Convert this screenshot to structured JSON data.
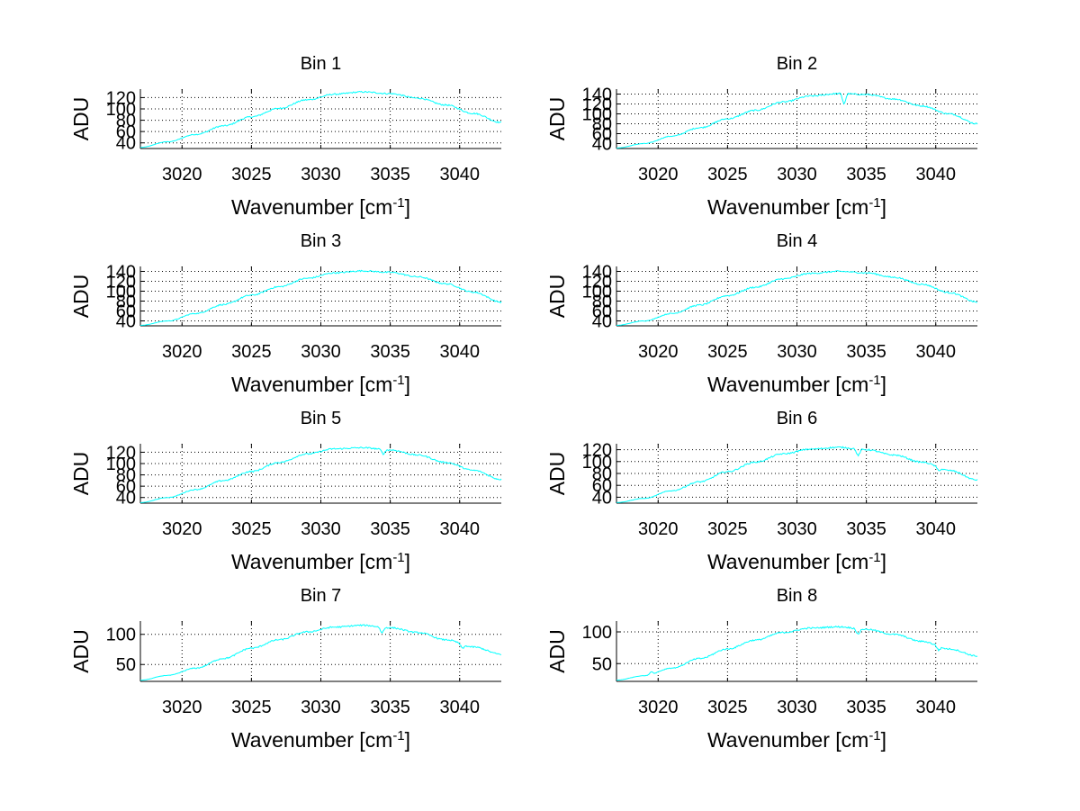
{
  "chart_data": [
    {
      "type": "line",
      "title": "Bin 1",
      "xlabel": "Wavenumber [cm",
      "xlabel_sup": "-1",
      "xlabel_end": "]",
      "ylabel": "ADU",
      "xlim": [
        3017,
        3043
      ],
      "xticks": [
        3020,
        3025,
        3030,
        3035,
        3040
      ],
      "ylim": [
        30,
        135
      ],
      "yticks": [
        40,
        60,
        80,
        100,
        120
      ],
      "ytick_labels": [
        "40",
        "60",
        "80",
        "100",
        "120"
      ],
      "grid": true,
      "line_color": "#00ffff",
      "series": [
        {
          "x": [
            3017,
            3019,
            3021,
            3023,
            3025,
            3027,
            3029,
            3031,
            3033,
            3035,
            3037,
            3039,
            3041,
            3043
          ],
          "values": [
            32,
            42,
            55,
            70,
            86,
            101,
            116,
            126,
            130,
            127,
            119,
            107,
            92,
            76
          ]
        }
      ],
      "dips": []
    },
    {
      "type": "line",
      "title": "Bin 2",
      "xlabel": "Wavenumber [cm",
      "xlabel_sup": "-1",
      "xlabel_end": "]",
      "ylabel": "ADU",
      "xlim": [
        3017,
        3043
      ],
      "xticks": [
        3020,
        3025,
        3030,
        3035,
        3040
      ],
      "ylim": [
        30,
        150
      ],
      "yticks": [
        40,
        60,
        80,
        100,
        120,
        140
      ],
      "ytick_labels": [
        "40",
        "60",
        "80",
        "100",
        "120",
        "140"
      ],
      "grid": true,
      "line_color": "#00ffff",
      "series": [
        {
          "x": [
            3017,
            3019,
            3021,
            3023,
            3025,
            3027,
            3029,
            3031,
            3033,
            3035,
            3037,
            3039,
            3041,
            3043
          ],
          "values": [
            31,
            40,
            55,
            72,
            90,
            107,
            124,
            136,
            141,
            139,
            130,
            116,
            100,
            80
          ]
        }
      ],
      "dips": [
        {
          "x": 3033.4,
          "depth": 22
        }
      ]
    },
    {
      "type": "line",
      "title": "Bin 3",
      "xlabel": "Wavenumber [cm",
      "xlabel_sup": "-1",
      "xlabel_end": "]",
      "ylabel": "ADU",
      "xlim": [
        3017,
        3043
      ],
      "xticks": [
        3020,
        3025,
        3030,
        3035,
        3040
      ],
      "ylim": [
        30,
        150
      ],
      "yticks": [
        40,
        60,
        80,
        100,
        120,
        140
      ],
      "ytick_labels": [
        "40",
        "60",
        "80",
        "100",
        "120",
        "140"
      ],
      "grid": true,
      "line_color": "#00ffff",
      "series": [
        {
          "x": [
            3017,
            3019,
            3021,
            3023,
            3025,
            3027,
            3029,
            3031,
            3033,
            3035,
            3037,
            3039,
            3041,
            3043
          ],
          "values": [
            31,
            40,
            55,
            73,
            92,
            109,
            126,
            137,
            141,
            138,
            129,
            115,
            98,
            78
          ]
        }
      ],
      "dips": []
    },
    {
      "type": "line",
      "title": "Bin 4",
      "xlabel": "Wavenumber [cm",
      "xlabel_sup": "-1",
      "xlabel_end": "]",
      "ylabel": "ADU",
      "xlim": [
        3017,
        3043
      ],
      "xticks": [
        3020,
        3025,
        3030,
        3035,
        3040
      ],
      "ylim": [
        30,
        150
      ],
      "yticks": [
        40,
        60,
        80,
        100,
        120,
        140
      ],
      "ytick_labels": [
        "40",
        "60",
        "80",
        "100",
        "120",
        "140"
      ],
      "grid": true,
      "line_color": "#00ffff",
      "series": [
        {
          "x": [
            3017,
            3019,
            3021,
            3023,
            3025,
            3027,
            3029,
            3031,
            3033,
            3035,
            3037,
            3039,
            3041,
            3043
          ],
          "values": [
            31,
            40,
            55,
            72,
            91,
            108,
            125,
            136,
            140,
            137,
            128,
            114,
            97,
            78
          ]
        }
      ],
      "dips": []
    },
    {
      "type": "line",
      "title": "Bin 5",
      "xlabel": "Wavenumber [cm",
      "xlabel_sup": "-1",
      "xlabel_end": "]",
      "ylabel": "ADU",
      "xlim": [
        3017,
        3043
      ],
      "xticks": [
        3020,
        3025,
        3030,
        3035,
        3040
      ],
      "ylim": [
        30,
        135
      ],
      "yticks": [
        40,
        60,
        80,
        100,
        120
      ],
      "ytick_labels": [
        "40",
        "60",
        "80",
        "100",
        "120"
      ],
      "grid": true,
      "line_color": "#00ffff",
      "series": [
        {
          "x": [
            3017,
            3019,
            3021,
            3023,
            3025,
            3027,
            3029,
            3031,
            3033,
            3035,
            3037,
            3039,
            3041,
            3043
          ],
          "values": [
            31,
            40,
            54,
            70,
            86,
            102,
            117,
            126,
            128,
            124,
            115,
            102,
            88,
            72
          ]
        }
      ],
      "dips": [
        {
          "x": 3034.5,
          "depth": 8
        }
      ]
    },
    {
      "type": "line",
      "title": "Bin 6",
      "xlabel": "Wavenumber [cm",
      "xlabel_sup": "-1",
      "xlabel_end": "]",
      "ylabel": "ADU",
      "xlim": [
        3017,
        3043
      ],
      "xticks": [
        3020,
        3025,
        3030,
        3035,
        3040
      ],
      "ylim": [
        30,
        130
      ],
      "yticks": [
        40,
        60,
        80,
        100,
        120
      ],
      "ytick_labels": [
        "40",
        "60",
        "80",
        "100",
        "120"
      ],
      "grid": true,
      "line_color": "#00ffff",
      "series": [
        {
          "x": [
            3017,
            3019,
            3021,
            3023,
            3025,
            3027,
            3029,
            3031,
            3033,
            3035,
            3037,
            3039,
            3041,
            3043
          ],
          "values": [
            31,
            38,
            51,
            66,
            83,
            99,
            113,
            121,
            124,
            120,
            111,
            99,
            85,
            69
          ]
        }
      ],
      "dips": [
        {
          "x": 3034.4,
          "depth": 12
        },
        {
          "x": 3040.2,
          "depth": 5
        }
      ]
    },
    {
      "type": "line",
      "title": "Bin 7",
      "xlabel": "Wavenumber [cm",
      "xlabel_sup": "-1",
      "xlabel_end": "]",
      "ylabel": "ADU",
      "xlim": [
        3017,
        3043
      ],
      "xticks": [
        3020,
        3025,
        3030,
        3035,
        3040
      ],
      "ylim": [
        22,
        122
      ],
      "yticks": [
        50,
        100
      ],
      "ytick_labels": [
        "50",
        "100"
      ],
      "grid": true,
      "line_color": "#00ffff",
      "series": [
        {
          "x": [
            3017,
            3019,
            3021,
            3023,
            3025,
            3027,
            3029,
            3031,
            3033,
            3035,
            3037,
            3039,
            3041,
            3043
          ],
          "values": [
            24,
            32,
            44,
            60,
            77,
            91,
            104,
            112,
            115,
            111,
            103,
            91,
            79,
            67
          ]
        }
      ],
      "dips": [
        {
          "x": 3034.4,
          "depth": 10
        },
        {
          "x": 3040.2,
          "depth": 7
        }
      ]
    },
    {
      "type": "line",
      "title": "Bin 8",
      "xlabel": "Wavenumber [cm",
      "xlabel_sup": "-1",
      "xlabel_end": "]",
      "ylabel": "ADU",
      "xlim": [
        3017,
        3043
      ],
      "xticks": [
        3020,
        3025,
        3030,
        3035,
        3040
      ],
      "ylim": [
        22,
        117
      ],
      "yticks": [
        50,
        100
      ],
      "ytick_labels": [
        "50",
        "100"
      ],
      "grid": true,
      "line_color": "#00ffff",
      "series": [
        {
          "x": [
            3017,
            3019,
            3021,
            3023,
            3025,
            3027,
            3029,
            3031,
            3033,
            3035,
            3037,
            3039,
            3041,
            3043
          ],
          "values": [
            24,
            31,
            43,
            58,
            73,
            87,
            99,
            106,
            108,
            104,
            96,
            85,
            73,
            62
          ]
        }
      ],
      "dips": [
        {
          "x": 3034.4,
          "depth": 10
        },
        {
          "x": 3040.2,
          "depth": 6
        },
        {
          "x": 3019.5,
          "depth": -5
        }
      ]
    }
  ]
}
